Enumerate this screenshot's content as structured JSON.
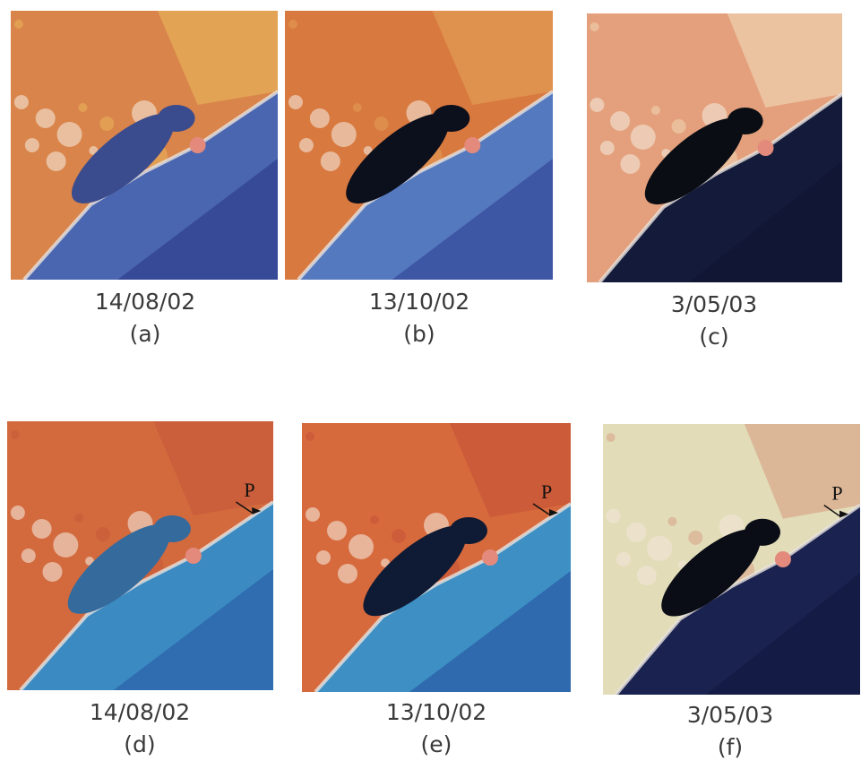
{
  "panels": [
    {
      "date": "14/08/02",
      "label": "(a)"
    },
    {
      "date": "13/10/02",
      "label": "(b)"
    },
    {
      "date": "3/05/03",
      "label": "(c)"
    },
    {
      "date": "14/08/02",
      "label": "(d)",
      "marker": "P"
    },
    {
      "date": "13/10/02",
      "label": "(e)",
      "marker": "P"
    },
    {
      "date": "3/05/03",
      "label": "(f)",
      "marker": "P"
    }
  ]
}
